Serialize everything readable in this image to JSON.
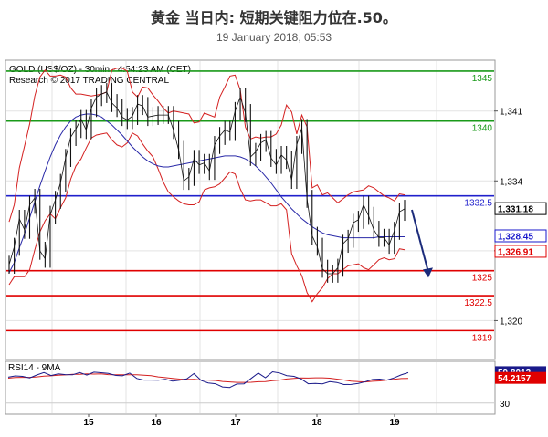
{
  "header": {
    "title": "黄金 当日内: 短期关键阻力位在.50。",
    "date": "19 January 2018, 05:53"
  },
  "chart_data": {
    "type": "line",
    "title": "GOLD (US$/OZ) - 30min - 4:54:23 AM (CET)",
    "subtitle": "Research © 2017 TRADING CENTRAL",
    "x_labels": [
      "15",
      "16",
      "17",
      "18",
      "19"
    ],
    "y_ticks": [
      1320,
      1327,
      1334,
      1341
    ],
    "y_tick_labels": [
      "1,320",
      "1,327",
      "1,334",
      "1,341"
    ],
    "ylim": [
      1316.2,
      1346.0
    ],
    "levels": [
      {
        "value": 1345,
        "label": "1345",
        "color": "#1a9a1a"
      },
      {
        "value": 1340,
        "label": "1340",
        "color": "#1a9a1a"
      },
      {
        "value": 1332.5,
        "label": "1332.5",
        "color": "#2020cc"
      },
      {
        "value": 1325,
        "label": "1325",
        "color": "#e00000"
      },
      {
        "value": 1322.5,
        "label": "1322.5",
        "color": "#e00000"
      },
      {
        "value": 1319,
        "label": "1319",
        "color": "#e00000"
      }
    ],
    "price_tags": [
      {
        "value": 1331.18,
        "label": "1,331.18",
        "bg": "#ffffff",
        "fg": "#000000",
        "border": "#000000"
      },
      {
        "value": 1328.45,
        "label": "1,328.45",
        "bg": "#ffffff",
        "fg": "#1a1acc",
        "border": "#1a1acc"
      },
      {
        "value": 1326.9,
        "label": "1,326.91",
        "bg": "#ffffff",
        "fg": "#e00000",
        "border": "#e00000"
      }
    ],
    "price_close": [
      1325.6,
      1327.4,
      1330.2,
      1329.1,
      1331.6,
      1332.3,
      1327.0,
      1326.2,
      1330.6,
      1332.1,
      1333.8,
      1336.3,
      1338.4,
      1339.2,
      1340.2,
      1339.1,
      1341.3,
      1342.4,
      1342.7,
      1342.9,
      1341.8,
      1341.3,
      1340.4,
      1340.1,
      1340.5,
      1341.7,
      1341.5,
      1340.4,
      1340.5,
      1340.6,
      1340.6,
      1340.6,
      1339.1,
      1337.1,
      1334.0,
      1334.4,
      1336.2,
      1335.6,
      1335.8,
      1335.0,
      1337.6,
      1338.5,
      1339.1,
      1338.9,
      1341.0,
      1342.4,
      1340.8,
      1336.4,
      1336.9,
      1337.8,
      1338.1,
      1336.3,
      1335.6,
      1336.6,
      1336.1,
      1334.1,
      1337.6,
      1339.3,
      1332.2,
      1328.5,
      1327.4,
      1325.2,
      1324.7,
      1324.7,
      1325.3,
      1327.7,
      1328.2,
      1329.8,
      1330.1,
      1331.6,
      1330.5,
      1329.1,
      1328.3,
      1328.3,
      1327.6,
      1329.0,
      1330.9,
      1331.2
    ],
    "upper_band": [
      1329.9,
      1331.6,
      1335.3,
      1337.5,
      1339.7,
      1342.5,
      1344.4,
      1345.1,
      1344.5,
      1344.5,
      1344.6,
      1344.4,
      1343.3,
      1342.7,
      1342.7,
      1342.6,
      1342.5,
      1342.6,
      1342.7,
      1342.9,
      1345.1,
      1345.3,
      1345.3,
      1345.0,
      1342.9,
      1342.4,
      1343.4,
      1343.3,
      1342.6,
      1342.0,
      1341.3,
      1340.8,
      1341.0,
      1340.9,
      1340.8,
      1340.7,
      1339.8,
      1339.9,
      1340.8,
      1340.6,
      1340.4,
      1342.4,
      1343.4,
      1344.5,
      1344.6,
      1343.1,
      1339.4,
      1338.2,
      1338.4,
      1338.3,
      1338.4,
      1338.4,
      1338.7,
      1339.6,
      1341.6,
      1340.9,
      1338.7,
      1340.6,
      1339.4,
      1333.3,
      1333.6,
      1332.6,
      1332.8,
      1332.3,
      1331.8,
      1332.2,
      1332.6,
      1332.9,
      1333.0,
      1333.1,
      1333.5,
      1333.3,
      1332.9,
      1332.5,
      1332.3,
      1332.0,
      1332.7,
      1332.6
    ],
    "lower_band": [
      1323.6,
      1324.4,
      1324.4,
      1324.4,
      1325.1,
      1327.1,
      1328.9,
      1330.0,
      1330.7,
      1330.2,
      1331.3,
      1332.3,
      1334.2,
      1335.5,
      1336.2,
      1337.3,
      1338.3,
      1338.6,
      1338.7,
      1338.8,
      1338.1,
      1337.6,
      1337.4,
      1337.8,
      1338.8,
      1338.5,
      1337.7,
      1337.0,
      1336.4,
      1335.2,
      1333.9,
      1332.9,
      1332.4,
      1332.0,
      1331.7,
      1331.6,
      1331.6,
      1331.9,
      1333.1,
      1333.3,
      1333.4,
      1333.7,
      1334.3,
      1334.9,
      1334.7,
      1333.2,
      1332.1,
      1332.0,
      1332.1,
      1332.1,
      1331.8,
      1331.5,
      1331.5,
      1331.7,
      1331.1,
      1326.7,
      1325.5,
      1324.5,
      1322.8,
      1321.9,
      1322.7,
      1323.3,
      1324.2,
      1324.7,
      1324.7,
      1325.1,
      1325.5,
      1325.6,
      1325.7,
      1325.3,
      1325.1,
      1325.6,
      1326.1,
      1326.3,
      1326.1,
      1326.2,
      1327.2,
      1327.1
    ],
    "moving_average": [
      1324.8,
      1325.8,
      1327.3,
      1328.7,
      1330.3,
      1331.9,
      1333.5,
      1335.0,
      1336.4,
      1337.6,
      1338.6,
      1339.4,
      1340.0,
      1340.4,
      1340.6,
      1340.7,
      1340.7,
      1340.6,
      1340.4,
      1340.0,
      1339.6,
      1339.1,
      1338.6,
      1338.0,
      1337.4,
      1336.9,
      1336.4,
      1336.0,
      1335.7,
      1335.5,
      1335.4,
      1335.4,
      1335.5,
      1335.6,
      1335.7,
      1335.8,
      1335.9,
      1336.0,
      1336.1,
      1336.2,
      1336.3,
      1336.4,
      1336.5,
      1336.5,
      1336.5,
      1336.4,
      1336.2,
      1335.9,
      1335.5,
      1335.0,
      1334.4,
      1333.8,
      1333.1,
      1332.4,
      1331.8,
      1331.2,
      1330.7,
      1330.2,
      1329.8,
      1329.4,
      1329.1,
      1328.8,
      1328.6,
      1328.5,
      1328.4,
      1328.3,
      1328.3,
      1328.3,
      1328.3,
      1328.3,
      1328.3,
      1328.3,
      1328.4,
      1328.4,
      1328.4,
      1328.4,
      1328.4,
      1328.4
    ],
    "forecast_arrow": {
      "from": 1331.1,
      "to": 1324.3
    },
    "rsi": {
      "title": "RSI14 - 9MA",
      "value_tags": [
        {
          "value": 59.8013,
          "label": "59.8013",
          "bg": "#1a1a8a",
          "fg": "#ffffff"
        },
        {
          "value": 54.2157,
          "label": "54.2157",
          "bg": "#e00000",
          "fg": "#ffffff"
        }
      ],
      "ref_line": 30,
      "ref_label": "30",
      "ylim": [
        20,
        70
      ],
      "rsi_line": [
        55.4,
        56.6,
        56.2,
        54.6,
        57.5,
        59.9,
        57.0,
        58.6,
        57.9,
        57.7,
        59.9,
        57.4,
        60.3,
        59.7,
        59.0,
        57.1,
        56.7,
        59.4,
        54.1,
        52.5,
        52.5,
        52.4,
        53.3,
        51.5,
        52.4,
        53.7,
        58.9,
        52.1,
        49.7,
        48.9,
        45.8,
        45.3,
        48.7,
        48.8,
        54.1,
        59.4,
        54.8,
        60.6,
        59.5,
        56.9,
        56.2,
        53.7,
        48.9,
        49.3,
        48.8,
        51.0,
        50.2,
        48.1,
        48.2,
        49.3,
        51.0,
        53.1,
        53.5,
        52.5,
        54.6,
        57.6,
        59.8
      ],
      "ma_line": [
        54.4,
        55.1,
        55.2,
        55.2,
        55.6,
        56.4,
        56.7,
        57.3,
        57.6,
        58.1,
        58.2,
        58.7,
        58.4,
        58.6,
        57.9,
        57.8,
        57.7,
        57.8,
        57.7,
        57.3,
        56.9,
        55.6,
        54.9,
        54.2,
        53.5,
        53.1,
        53.3,
        52.6,
        52.5,
        52.1,
        51.2,
        50.7,
        50.3,
        50.3,
        50.4,
        50.9,
        51.1,
        51.9,
        52.5,
        53.6,
        54.2,
        54.6,
        54.5,
        54.7,
        54.7,
        54.4,
        53.5,
        52.6,
        51.4,
        51.0,
        50.7,
        51.3,
        51.7,
        52.5,
        53.2,
        54.0,
        54.2
      ]
    }
  }
}
